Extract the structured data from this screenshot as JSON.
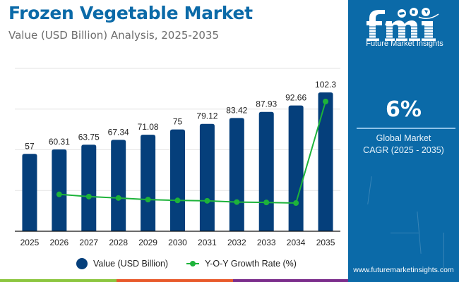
{
  "header": {
    "title": "Frozen Vegetable Market",
    "subtitle": "Value (USD Billion) Analysis, 2025-2035"
  },
  "sidebar": {
    "logo_text": "Future Market Insights",
    "cagr_value": "6%",
    "cagr_label_line1": "Global Market",
    "cagr_label_line2": "CAGR (2025 - 2035)",
    "website": "www.futuremarketinsights.com",
    "background_color": "#0b6aa8"
  },
  "legend": {
    "bar_label": "Value (USD Billion)",
    "line_label": "Y-O-Y Growth Rate (%)"
  },
  "colors": {
    "bar": "#053f7b",
    "line": "#1db33a",
    "title": "#0b6aa8",
    "strip": [
      "#8cc63f",
      "#e8592a",
      "#7b2d8b"
    ]
  },
  "chart_data": {
    "type": "bar",
    "title": "Frozen Vegetable Market",
    "subtitle": "Value (USD Billion) Analysis, 2025-2035",
    "xlabel": "",
    "ylabel": "",
    "categories": [
      "2025",
      "2026",
      "2027",
      "2028",
      "2029",
      "2030",
      "2031",
      "2032",
      "2033",
      "2034",
      "2035"
    ],
    "ylim": [
      0,
      120
    ],
    "y_gridlines": [
      0,
      30,
      60,
      90,
      120
    ],
    "y_tick_labels_visible": false,
    "grid": true,
    "legend_position": "bottom",
    "series": [
      {
        "name": "Value (USD Billion)",
        "type": "bar",
        "values": [
          57,
          60.31,
          63.75,
          67.34,
          71.08,
          75,
          79.12,
          83.42,
          87.93,
          92.66,
          102.3
        ],
        "labels": [
          "57",
          "60.31",
          "63.75",
          "67.34",
          "71.08",
          "75",
          "79.12",
          "83.42",
          "87.93",
          "92.66",
          "102.3"
        ]
      },
      {
        "name": "Y-O-Y Growth Rate (%)",
        "type": "line",
        "axis": "secondary-hidden",
        "values": [
          null,
          5.81,
          5.7,
          5.63,
          5.55,
          5.51,
          5.49,
          5.43,
          5.41,
          5.38,
          10.4
        ]
      }
    ]
  }
}
